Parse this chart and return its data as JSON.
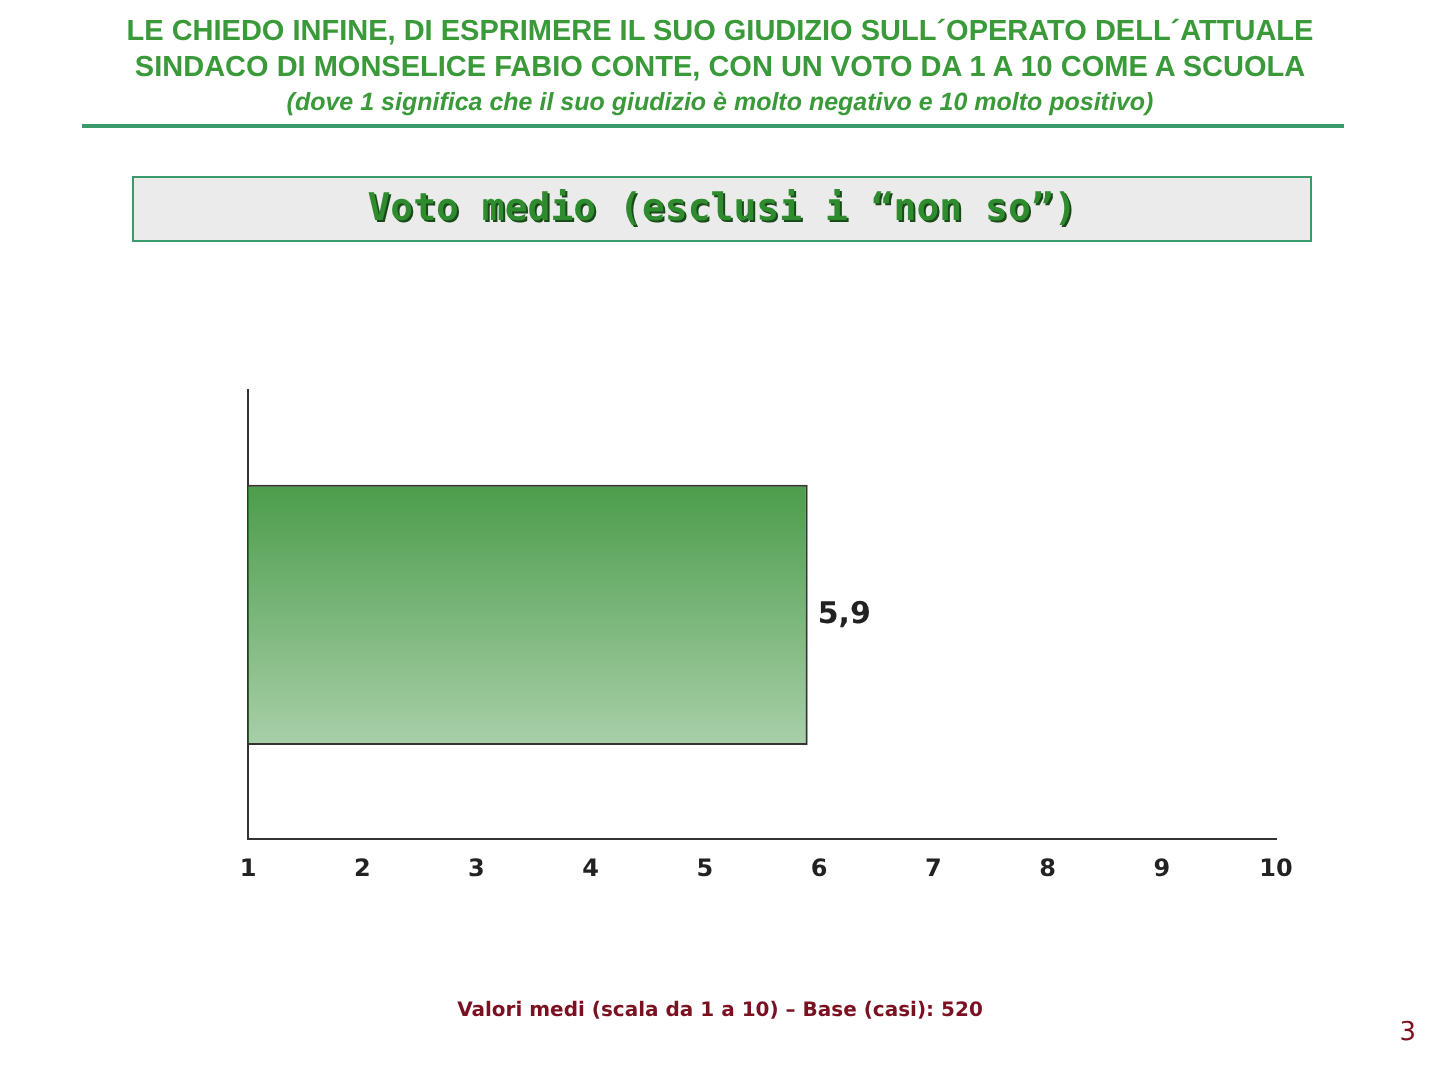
{
  "chart_data": {
    "type": "bar",
    "orientation": "horizontal",
    "title": "LE CHIEDO INFINE, DI ESPRIMERE IL SUO GIUDIZIO SULL´OPERATO DELL´ATTUALE SINDACO DI MONSELICE FABIO CONTE, CON UN VOTO DA 1 A 10 COME A SCUOLA",
    "subtitle": "(dove 1 significa che il suo giudizio è molto negativo e 10 molto positivo)",
    "annotations": [
      "Voto medio (esclusi i “non so”)",
      "Valori medi (scala da 1 a 10) – Base (casi): 520",
      "3"
    ],
    "categories": [
      null
    ],
    "values": [
      5.9
    ],
    "value_labels": [
      "5,9"
    ],
    "color": "#2a8a2a",
    "xlim": [
      1,
      10
    ],
    "xticks": [
      1,
      2,
      3,
      4,
      5,
      6,
      7,
      8,
      9,
      10
    ],
    "grid": false,
    "legend": false
  }
}
